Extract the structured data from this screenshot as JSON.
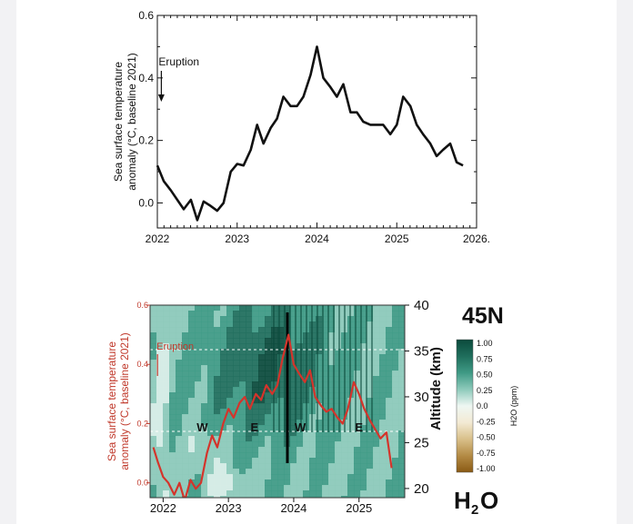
{
  "chart_data": [
    {
      "type": "line",
      "title": "",
      "xlabel": "",
      "ylabel": "Sea surface temperature anomaly (°C, baseline 2021)",
      "xlim": [
        2022,
        2026
      ],
      "ylim": [
        -0.08,
        0.6
      ],
      "xticks": [
        "2022",
        "2023",
        "2024",
        "2025",
        "2026."
      ],
      "yticks": [
        "0.0",
        "0.2",
        "0.4",
        "0.6"
      ],
      "annotation": "Eruption",
      "annotation_x": 2022.05,
      "series": [
        {
          "color": "#111111",
          "x": [
            2022.0,
            2022.08,
            2022.17,
            2022.25,
            2022.33,
            2022.42,
            2022.5,
            2022.58,
            2022.67,
            2022.75,
            2022.83,
            2022.92,
            2023.0,
            2023.08,
            2023.17,
            2023.25,
            2023.33,
            2023.42,
            2023.5,
            2023.58,
            2023.67,
            2023.75,
            2023.83,
            2023.92,
            2024.0,
            2024.08,
            2024.17,
            2024.25,
            2024.33,
            2024.42,
            2024.5,
            2024.58,
            2024.67,
            2024.75,
            2024.83,
            2024.92,
            2025.0,
            2025.08,
            2025.17,
            2025.25,
            2025.33,
            2025.42,
            2025.5,
            2025.58,
            2025.67,
            2025.75,
            2025.83
          ],
          "y": [
            0.12,
            0.07,
            0.04,
            0.01,
            -0.02,
            0.01,
            -0.055,
            0.005,
            -0.01,
            -0.025,
            0.0,
            0.1,
            0.125,
            0.12,
            0.17,
            0.25,
            0.19,
            0.24,
            0.27,
            0.34,
            0.31,
            0.31,
            0.34,
            0.41,
            0.5,
            0.4,
            0.37,
            0.34,
            0.38,
            0.29,
            0.29,
            0.26,
            0.25,
            0.25,
            0.25,
            0.22,
            0.25,
            0.34,
            0.31,
            0.25,
            0.22,
            0.19,
            0.15,
            0.17,
            0.19,
            0.13,
            0.12
          ]
        }
      ]
    },
    {
      "type": "heatmap",
      "title": "45N",
      "subtitle": "H2O",
      "xlabel": "",
      "ylabel_left": "Sea surface temperature anomaly (°C, baseline 2021)",
      "ylabel_right": "Altitude (km)",
      "xlim": [
        2021.8,
        2025.7
      ],
      "ylim_left": [
        -0.05,
        0.6
      ],
      "ylim_right": [
        19,
        40
      ],
      "xticks": [
        "2022",
        "2023",
        "2024",
        "2025"
      ],
      "yticks_left": [
        "0.0",
        "0.2",
        "0.4",
        "0.6"
      ],
      "yticks_right": [
        "20",
        "25",
        "30",
        "35",
        "40"
      ],
      "annotation": "Eruption",
      "markers": [
        {
          "label": "W",
          "x": 2022.6
        },
        {
          "label": "E",
          "x": 2023.4
        },
        {
          "label": "W",
          "x": 2024.1
        },
        {
          "label": "E",
          "x": 2025.0
        }
      ],
      "colorbar": {
        "label": "H2O (ppm)",
        "ticks": [
          "1.00",
          "0.75",
          "0.50",
          "0.25",
          "0.0",
          "-0.25",
          "-0.50",
          "-0.75",
          "-1.00"
        ],
        "colors_high_to_low": [
          "#0b4a3c",
          "#1f6e5c",
          "#3f9a85",
          "#8dcabb",
          "#d6ede6",
          "#f3ead4",
          "#d9c08a",
          "#b48b45",
          "#8a5a14"
        ]
      },
      "series": [
        {
          "color": "#d4342b",
          "x": [
            2021.85,
            2021.92,
            2022.0,
            2022.08,
            2022.17,
            2022.25,
            2022.33,
            2022.42,
            2022.5,
            2022.58,
            2022.67,
            2022.75,
            2022.83,
            2022.92,
            2023.0,
            2023.08,
            2023.17,
            2023.25,
            2023.33,
            2023.42,
            2023.5,
            2023.58,
            2023.67,
            2023.75,
            2023.83,
            2023.92,
            2024.0,
            2024.08,
            2024.17,
            2024.25,
            2024.33,
            2024.42,
            2024.5,
            2024.58,
            2024.67,
            2024.75,
            2024.83,
            2024.92,
            2025.0,
            2025.08,
            2025.17,
            2025.25,
            2025.33,
            2025.42,
            2025.5
          ],
          "y": [
            0.12,
            0.07,
            0.02,
            0.0,
            -0.04,
            0.0,
            -0.06,
            0.01,
            -0.02,
            0.0,
            0.1,
            0.16,
            0.12,
            0.2,
            0.25,
            0.22,
            0.27,
            0.29,
            0.25,
            0.3,
            0.28,
            0.33,
            0.3,
            0.33,
            0.42,
            0.5,
            0.4,
            0.37,
            0.34,
            0.38,
            0.29,
            0.26,
            0.24,
            0.25,
            0.22,
            0.2,
            0.25,
            0.34,
            0.3,
            0.25,
            0.21,
            0.18,
            0.15,
            0.17,
            0.05
          ]
        }
      ]
    }
  ]
}
